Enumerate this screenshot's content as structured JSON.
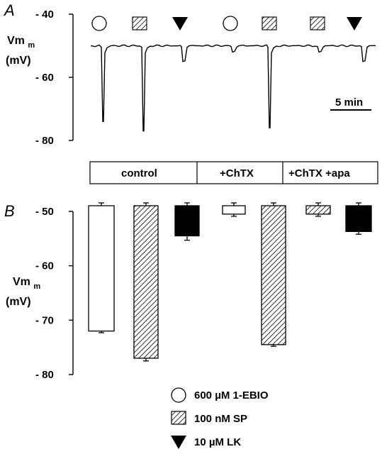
{
  "chart_data": [
    {
      "panel": "A",
      "type": "line",
      "ylabel": "Vm",
      "yunit": "(mV)",
      "ylim": [
        -80,
        -40
      ],
      "yticks": [
        "- 40",
        "- 60",
        "- 80"
      ],
      "ytick_values": [
        -40,
        -60,
        -80
      ],
      "baseline": -50,
      "scale_bar": "5 min",
      "application_symbols": [
        "circle",
        "hatched-square",
        "triangle",
        "circle",
        "hatched-square",
        "hatched-square",
        "triangle"
      ],
      "events": [
        {
          "symbol": "circle",
          "peak": -74
        },
        {
          "symbol": "hatched-square",
          "peak": -77
        },
        {
          "symbol": "triangle",
          "peak": -55
        },
        {
          "symbol": "circle",
          "peak": -52
        },
        {
          "symbol": "hatched-square",
          "peak": -76
        },
        {
          "symbol": "hatched-square",
          "peak": -52
        },
        {
          "symbol": "triangle",
          "peak": -55
        }
      ]
    },
    {
      "panel": "B",
      "type": "bar",
      "ylabel": "Vm",
      "yunit": "(mV)",
      "ylim": [
        -80,
        -50
      ],
      "yticks": [
        "- 50",
        "- 60",
        "- 70",
        "- 80"
      ],
      "ytick_values": [
        -50,
        -60,
        -70,
        -80
      ],
      "conditions": [
        "control",
        "+ChTX",
        "+ChTX +apa"
      ],
      "bars": [
        {
          "condition": "control",
          "treatment": "1-EBIO",
          "value": -72,
          "err": 0.3
        },
        {
          "condition": "control",
          "treatment": "SP",
          "value": -77,
          "err": 0.5
        },
        {
          "condition": "control",
          "treatment": "LK",
          "value": -54.5,
          "err": 0.8
        },
        {
          "condition": "+ChTX",
          "treatment": "1-EBIO",
          "value": -50.5,
          "err": 0.4
        },
        {
          "condition": "+ChTX",
          "treatment": "SP",
          "value": -74.5,
          "err": 0.3
        },
        {
          "condition": "+ChTX +apa",
          "treatment": "SP",
          "value": -50.5,
          "err": 0.4
        },
        {
          "condition": "+ChTX +apa",
          "treatment": "LK",
          "value": -53.7,
          "err": 0.5
        }
      ]
    }
  ],
  "panel_labels": {
    "a": "A",
    "b": "B"
  },
  "legend": [
    {
      "symbol": "circle",
      "label": "600 µM 1-EBIO"
    },
    {
      "symbol": "hatched-square",
      "label": "100 nM SP"
    },
    {
      "symbol": "triangle",
      "label": "10 µM LK"
    }
  ]
}
